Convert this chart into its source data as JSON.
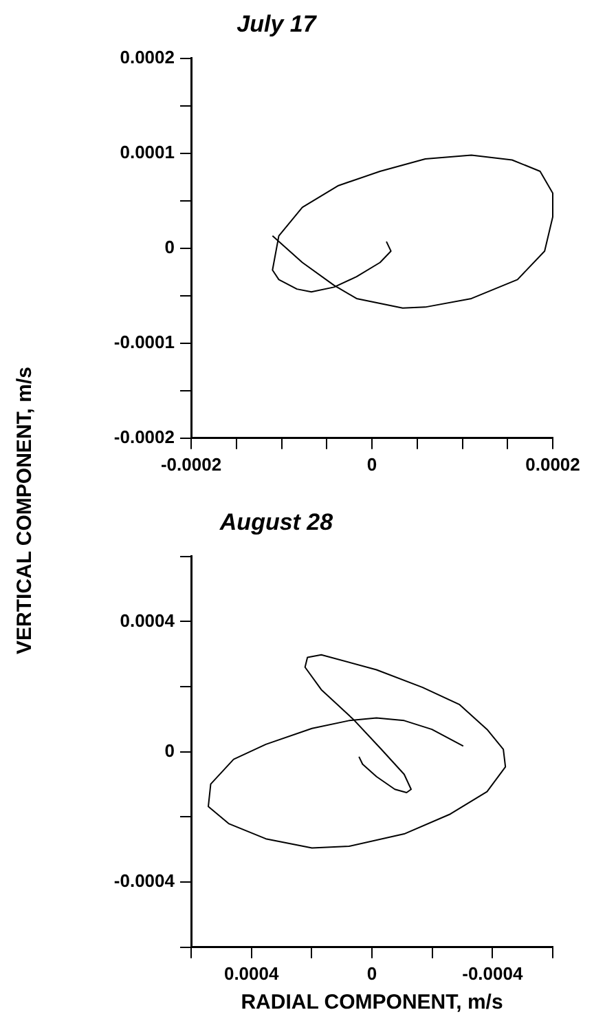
{
  "chart_data": [
    {
      "type": "line",
      "title": "July 17",
      "ylabel": "VERTICAL COMPONENT, m/s",
      "xlim": [
        -0.0002,
        0.0002
      ],
      "xticks": [
        -0.0002,
        {
          "value": -0.00015,
          "label": null
        },
        {
          "value": -0.0001,
          "label": null
        },
        {
          "value": -5e-05,
          "label": null
        },
        0,
        {
          "value": 5e-05,
          "label": null
        },
        {
          "value": 0.0001,
          "label": null
        },
        {
          "value": 0.00015,
          "label": null
        },
        0.0002
      ],
      "ylim": [
        -0.0002,
        0.0002
      ],
      "yticks": [
        -0.0002,
        {
          "value": -0.00015,
          "label": null
        },
        -0.0001,
        {
          "value": -5e-05,
          "label": null
        },
        0,
        {
          "value": 5e-05,
          "label": null
        },
        0.0001,
        {
          "value": 0.00015,
          "label": null
        },
        0.0002
      ],
      "series": [
        {
          "color": "#000000",
          "x": [
            -0.00011,
            -7.7e-05,
            -4.2e-05,
            -1.7e-05,
            3.4e-05,
            5.9e-05,
            0.00011,
            0.000161,
            0.000191,
            0.0002,
            0.0002,
            0.000186,
            0.000155,
            0.00011,
            5.9e-05,
            9e-06,
            -3.7e-05,
            -7.7e-05,
            -0.000103,
            -0.00011,
            -0.000103,
            -8.3e-05,
            -6.7e-05,
            -4.2e-05,
            -1.7e-05,
            9e-06,
            2.1e-05,
            1.6e-05
          ],
          "values": [
            1.3e-05,
            -1.5e-05,
            -3.9e-05,
            -5.3e-05,
            -6.3e-05,
            -6.2e-05,
            -5.3e-05,
            -3.3e-05,
            -3e-06,
            3.3e-05,
            5.8e-05,
            8.1e-05,
            9.3e-05,
            9.8e-05,
            9.4e-05,
            8.1e-05,
            6.6e-05,
            4.3e-05,
            1.3e-05,
            -2.3e-05,
            -3.3e-05,
            -4.3e-05,
            -4.6e-05,
            -4.1e-05,
            -3e-05,
            -1.5e-05,
            -3e-06,
            7e-06
          ]
        }
      ]
    },
    {
      "type": "line",
      "title": "August 28",
      "xlabel": "RADIAL COMPONENT, m/s",
      "xlim": [
        0.0006,
        -0.0006
      ],
      "xticks": [
        {
          "value": 0.0006,
          "label": null
        },
        0.0004,
        {
          "value": 0.0002,
          "label": null
        },
        0,
        {
          "value": -0.0002,
          "label": null
        },
        -0.0004,
        {
          "value": -0.0006,
          "label": null
        }
      ],
      "ylim": [
        -0.0006,
        0.0006
      ],
      "yticks": [
        {
          "value": -0.0006,
          "label": null
        },
        -0.0004,
        {
          "value": -0.0002,
          "label": null
        },
        0,
        {
          "value": 0.0002,
          "label": null
        },
        0.0004,
        {
          "value": 0.0006,
          "label": null
        }
      ],
      "series": [
        {
          "color": "#000000",
          "x": [
            -0.000303,
            -0.000199,
            -0.000107,
            -1.5e-05,
            7.6e-05,
            0.000199,
            0.000352,
            0.000459,
            0.000535,
            0.000543,
            0.000474,
            0.000352,
            0.000199,
            7.6e-05,
            -0.000107,
            -0.00026,
            -0.000382,
            -0.000443,
            -0.000436,
            -0.000382,
            -0.000291,
            -0.000168,
            -1.5e-05,
            0.000168,
            0.000214,
            0.000222,
            0.000168,
            6.1e-05,
            -3.1e-05,
            -0.000107,
            -0.00013,
            -0.000115,
            -7.6e-05,
            -1.5e-05,
            3.1e-05,
            4.3e-05
          ],
          "values": [
            1.8e-05,
            6.9e-05,
            9.6e-05,
            0.000104,
            9.6e-05,
            7.2e-05,
            2.3e-05,
            -2.3e-05,
            -9.9e-05,
            -0.000168,
            -0.000221,
            -0.000267,
            -0.000295,
            -0.00029,
            -0.000252,
            -0.000191,
            -0.000122,
            -4.6e-05,
            8e-06,
            6.9e-05,
            0.000145,
            0.000198,
            0.000252,
            0.000298,
            0.00029,
            0.00026,
            0.000191,
            9.9e-05,
            8e-06,
            -6.9e-05,
            -0.000115,
            -0.000125,
            -0.000115,
            -7.6e-05,
            -3.8e-05,
            -1.5e-05
          ]
        }
      ]
    }
  ]
}
